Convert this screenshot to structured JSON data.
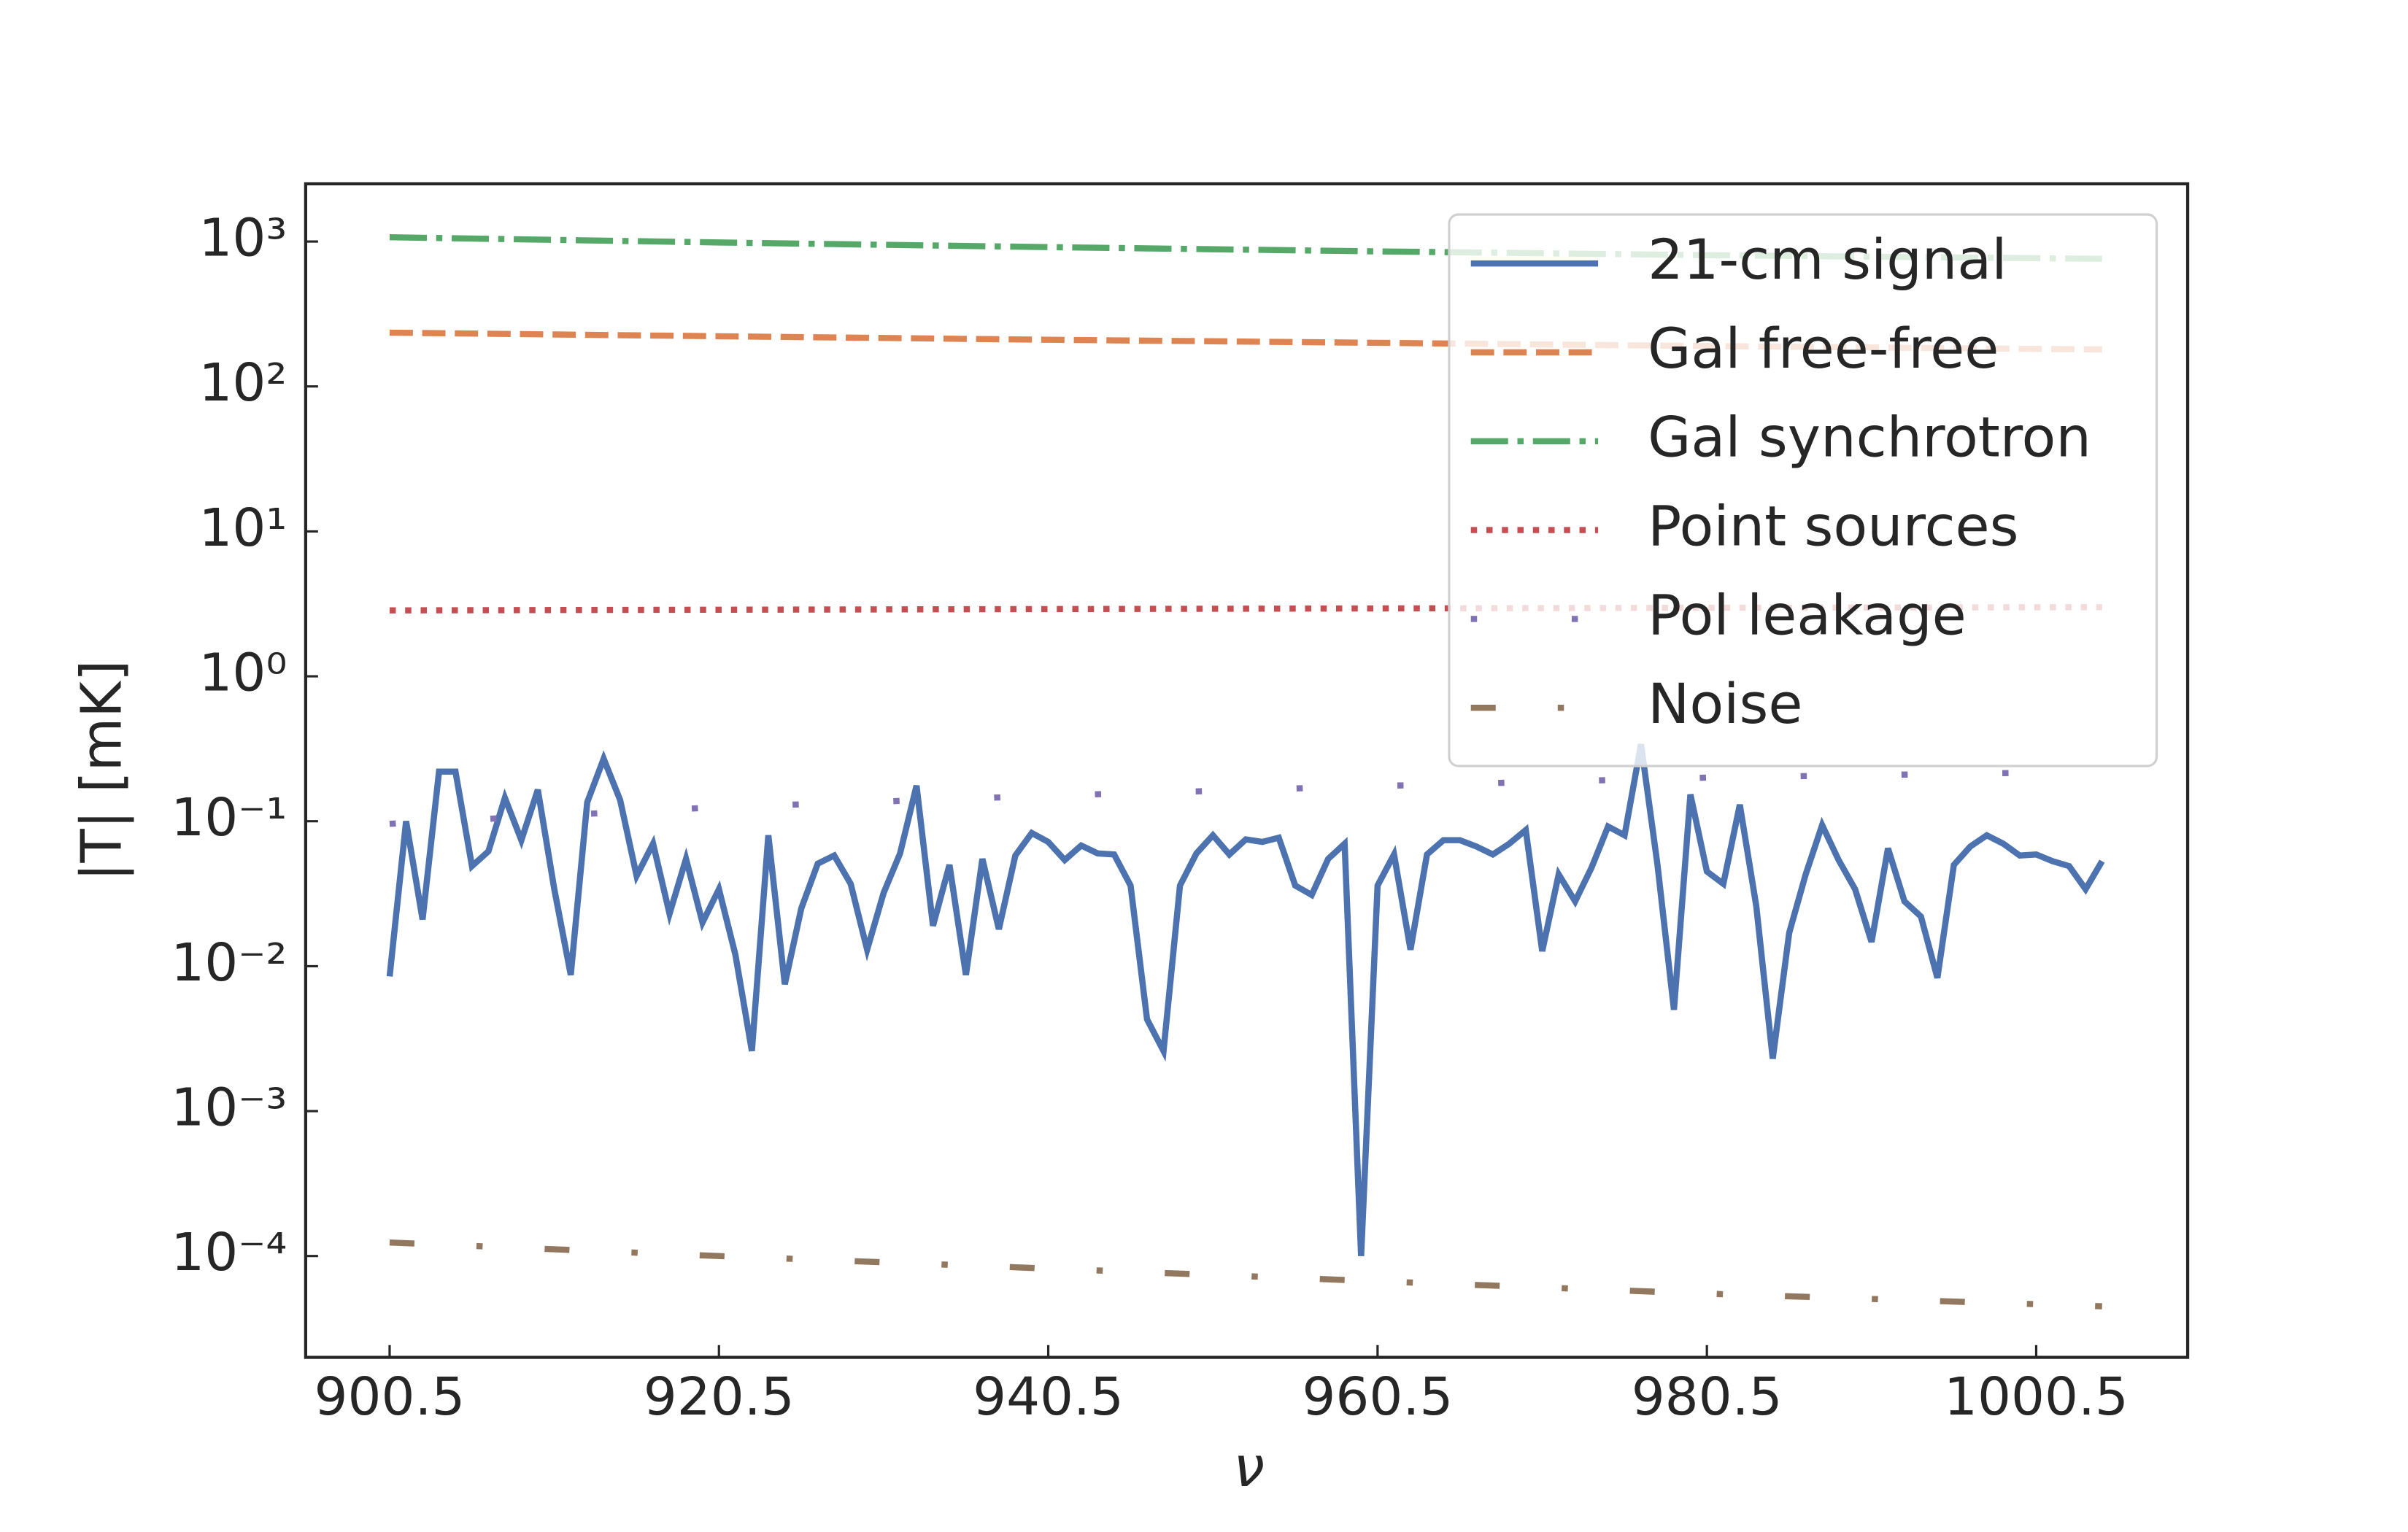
{
  "chart_data": {
    "type": "line",
    "xlabel": "ν",
    "ylabel": "|T| [mK]",
    "xlim": [
      895.4,
      1009.7
    ],
    "ylim": [
      2e-05,
      2500
    ],
    "yscale": "log",
    "legend": "upper right",
    "xticks": [
      900.5,
      920.5,
      940.5,
      960.5,
      980.5,
      1000.5
    ],
    "yticks": [
      {
        "value": 0.0001,
        "label": "10⁻⁴"
      },
      {
        "value": 0.001,
        "label": "10⁻³"
      },
      {
        "value": 0.01,
        "label": "10⁻²"
      },
      {
        "value": 0.1,
        "label": "10⁻¹"
      },
      {
        "value": 1,
        "label": "10⁰"
      },
      {
        "value": 10,
        "label": "10¹"
      },
      {
        "value": 100,
        "label": "10²"
      },
      {
        "value": 1000,
        "label": "10³"
      }
    ],
    "series": [
      {
        "name": "21-cm signal",
        "color": "#4c72b0",
        "linestyle": "solid",
        "x": [
          900.5,
          901.5,
          902.5,
          903.5,
          904.5,
          905.5,
          906.5,
          907.5,
          908.5,
          909.5,
          910.5,
          911.5,
          912.5,
          913.5,
          914.5,
          915.5,
          916.5,
          917.5,
          918.5,
          919.5,
          920.5,
          921.5,
          922.5,
          923.5,
          924.5,
          925.5,
          926.5,
          927.5,
          928.5,
          929.5,
          930.5,
          931.5,
          932.5,
          933.5,
          934.5,
          935.5,
          936.5,
          937.5,
          938.5,
          939.5,
          940.5,
          941.5,
          942.5,
          943.5,
          944.5,
          945.5,
          946.5,
          947.5,
          948.5,
          949.5,
          950.5,
          951.5,
          952.5,
          953.5,
          954.5,
          955.5,
          956.5,
          957.5,
          958.5,
          959.5,
          960.5,
          961.5,
          962.5,
          963.5,
          964.5,
          965.5,
          966.5,
          967.5,
          968.5,
          969.5,
          970.5,
          971.5,
          972.5,
          973.5,
          974.5,
          975.5,
          976.5,
          977.5,
          978.5,
          979.5,
          980.5,
          981.5,
          982.5,
          983.5,
          984.5,
          985.5,
          986.5,
          987.5,
          988.5,
          989.5,
          990.5,
          991.5,
          992.5,
          993.5,
          994.5,
          995.5,
          996.5,
          997.5,
          998.5,
          999.5,
          1000.5,
          1001.5,
          1002.5,
          1003.5,
          1004.5
        ],
        "values": [
          0.0085,
          0.1,
          0.021,
          0.22,
          0.22,
          0.049,
          0.062,
          0.145,
          0.074,
          0.165,
          0.034,
          0.0087,
          0.135,
          0.27,
          0.14,
          0.042,
          0.07,
          0.023,
          0.055,
          0.02,
          0.034,
          0.012,
          0.0026,
          0.08,
          0.0075,
          0.025,
          0.051,
          0.058,
          0.037,
          0.013,
          0.032,
          0.06,
          0.176,
          0.019,
          0.05,
          0.0087,
          0.055,
          0.018,
          0.058,
          0.083,
          0.072,
          0.054,
          0.068,
          0.06,
          0.059,
          0.036,
          0.0043,
          0.0026,
          0.036,
          0.06,
          0.08,
          0.059,
          0.075,
          0.072,
          0.077,
          0.036,
          0.031,
          0.055,
          0.07,
          0.0001,
          0.036,
          0.059,
          0.013,
          0.059,
          0.074,
          0.074,
          0.067,
          0.059,
          0.07,
          0.087,
          0.0127,
          0.043,
          0.028,
          0.048,
          0.092,
          0.08,
          0.34,
          0.05,
          0.005,
          0.153,
          0.045,
          0.037,
          0.13,
          0.026,
          0.0023,
          0.017,
          0.043,
          0.094,
          0.054,
          0.034,
          0.0147,
          0.065,
          0.028,
          0.022,
          0.0083,
          0.05,
          0.067,
          0.08,
          0.07,
          0.058,
          0.059,
          0.053,
          0.049,
          0.034,
          0.053
        ]
      },
      {
        "name": "Gal free-free",
        "color": "#dd8452",
        "linestyle": "dashed",
        "x": [
          900.5,
          920.5,
          940.5,
          960.5,
          980.5,
          1004.5
        ],
        "values": [
          235,
          222,
          210,
          200,
          190,
          180
        ]
      },
      {
        "name": "Gal synchrotron",
        "color": "#55a868",
        "linestyle": "dashdot",
        "x": [
          900.5,
          920.5,
          940.5,
          960.5,
          980.5,
          1004.5
        ],
        "values": [
          1070,
          985,
          915,
          855,
          805,
          760
        ]
      },
      {
        "name": "Point sources",
        "color": "#c44e52",
        "linestyle": "dotted",
        "x": [
          900.5,
          920.5,
          940.5,
          960.5,
          980.5,
          1004.5
        ],
        "values": [
          2.85,
          2.88,
          2.91,
          2.94,
          2.97,
          3.0
        ]
      },
      {
        "name": "Pol leakage",
        "color": "#8172b3",
        "linestyle": "loosely dotted",
        "x": [
          900.5,
          920.5,
          940.5,
          960.5,
          980.5,
          1004.5
        ],
        "values": [
          0.096,
          0.125,
          0.15,
          0.175,
          0.2,
          0.22
        ]
      },
      {
        "name": "Noise",
        "color": "#937860",
        "linestyle": "loosely dashdotted",
        "x": [
          900.5,
          920.5,
          940.5,
          960.5,
          980.5,
          1004.5
        ],
        "values": [
          0.000124,
          0.0001,
          8.2e-05,
          6.7e-05,
          5.5e-05,
          4.5e-05
        ]
      }
    ]
  }
}
